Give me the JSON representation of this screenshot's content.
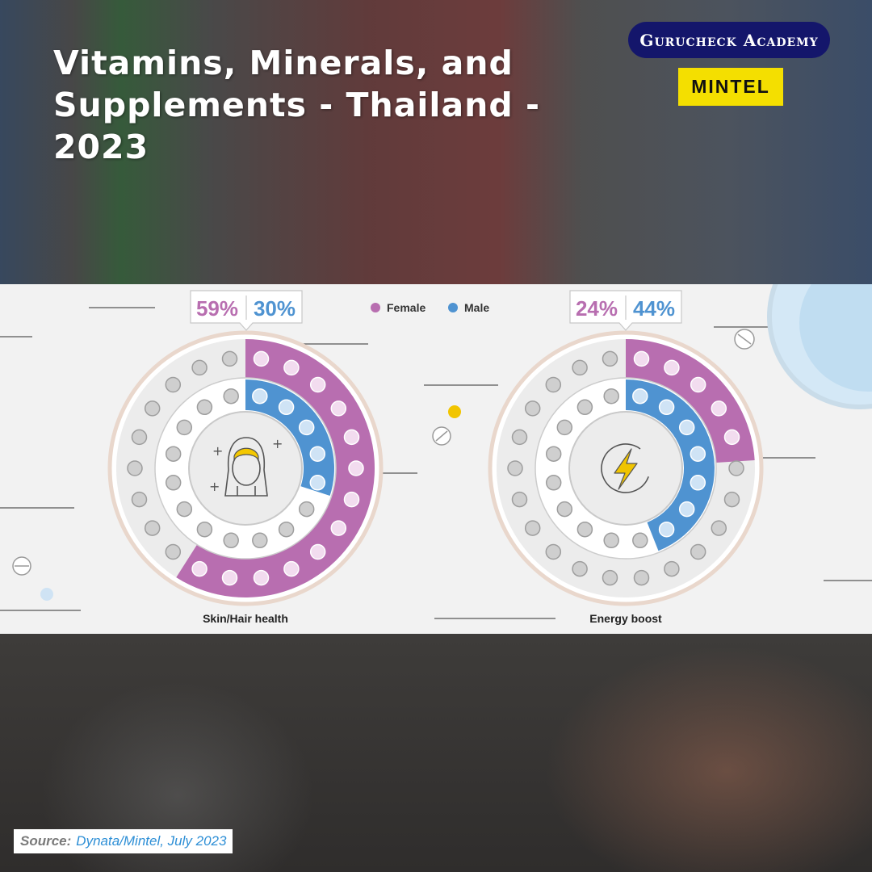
{
  "header": {
    "title": "Vitamins, Minerals, and Supplements - Thailand - 2023",
    "brand": "Gurucheck Academy",
    "logo_text": "MINTEL"
  },
  "legend": {
    "items": [
      {
        "label": "Female",
        "color": "#b86eb0"
      },
      {
        "label": "Male",
        "color": "#4f93d1"
      }
    ]
  },
  "footer": {
    "source_label": "Source:",
    "source_value": "Dynata/Mintel, July 2023"
  },
  "chart_data": [
    {
      "type": "pie",
      "categories": [
        "Female",
        "Male"
      ],
      "values": [
        59,
        30
      ],
      "unit": "%",
      "value_labels": [
        "59%",
        "30%"
      ],
      "xlabel": "Skin/Hair health",
      "icon": "woman-face-icon"
    },
    {
      "type": "pie",
      "categories": [
        "Female",
        "Male"
      ],
      "values": [
        24,
        44
      ],
      "unit": "%",
      "value_labels": [
        "24%",
        "44%"
      ],
      "xlabel": "Energy boost",
      "icon": "lightning-bolt-icon"
    }
  ],
  "colors": {
    "female": "#b86eb0",
    "male": "#4f93d1",
    "ring_border": "#e9d7cc",
    "track": "#ececec",
    "bolt": "#f0c400",
    "headband": "#f4c800"
  }
}
